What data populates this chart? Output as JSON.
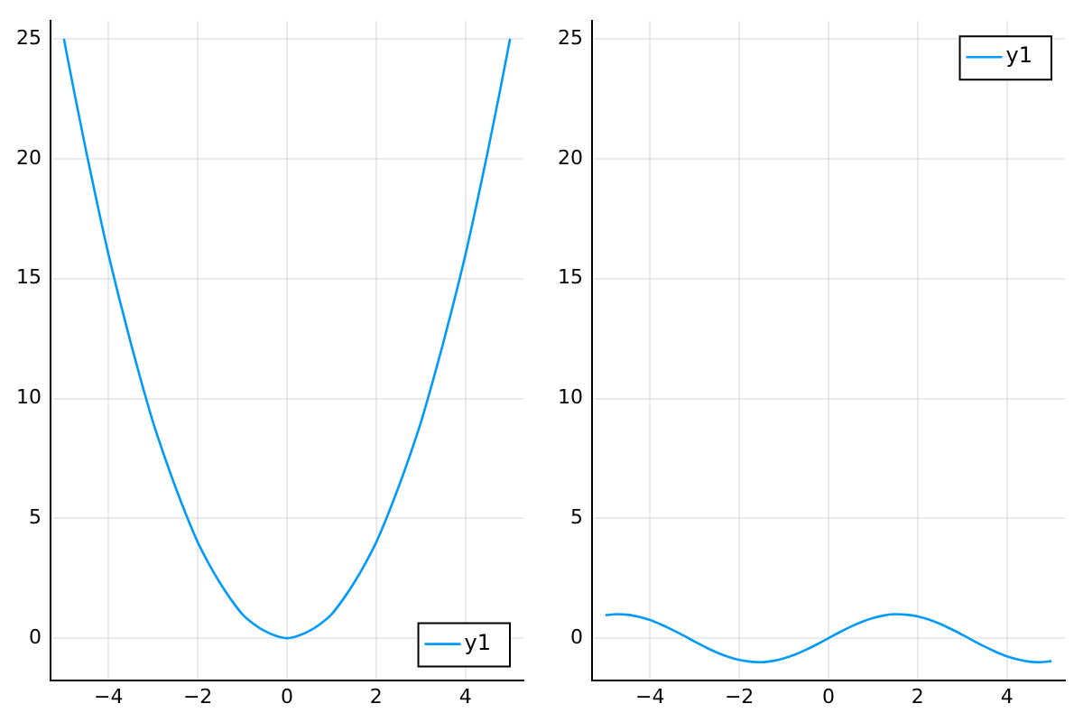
{
  "chart_data": [
    {
      "type": "line",
      "x": [
        -5,
        -4.75,
        -4.5,
        -4.25,
        -4,
        -3.75,
        -3.5,
        -3.25,
        -3,
        -2.75,
        -2.5,
        -2.25,
        -2,
        -1.75,
        -1.5,
        -1.25,
        -1,
        -0.75,
        -0.5,
        -0.25,
        0,
        0.25,
        0.5,
        0.75,
        1,
        1.25,
        1.5,
        1.75,
        2,
        2.25,
        2.5,
        2.75,
        3,
        3.25,
        3.5,
        3.75,
        4,
        4.25,
        4.5,
        4.75,
        5
      ],
      "series": [
        {
          "name": "y1",
          "color": "#009af9",
          "values": [
            25,
            22.6,
            20.3,
            18.1,
            16,
            14.1,
            12.3,
            10.6,
            9,
            7.6,
            6.3,
            5.1,
            4,
            3.1,
            2.3,
            1.6,
            1,
            0.6,
            0.3,
            0.1,
            0,
            0.1,
            0.3,
            0.6,
            1,
            1.6,
            2.3,
            3.1,
            4,
            5.1,
            6.3,
            7.6,
            9,
            10.6,
            12.3,
            14.1,
            16,
            18.1,
            20.3,
            22.6,
            25
          ]
        }
      ],
      "xlim": [
        -5.3,
        5.3
      ],
      "ylim": [
        -1.75,
        25.75
      ],
      "xticks": [
        -4,
        -2,
        0,
        2,
        4
      ],
      "yticks": [
        0,
        5,
        10,
        15,
        20,
        25
      ],
      "grid": true,
      "legend": "bottom right"
    },
    {
      "type": "line",
      "x": [
        -5,
        -4.75,
        -4.5,
        -4.25,
        -4,
        -3.75,
        -3.5,
        -3.25,
        -3,
        -2.75,
        -2.5,
        -2.25,
        -2,
        -1.75,
        -1.5,
        -1.25,
        -1,
        -0.75,
        -0.5,
        -0.25,
        0,
        0.25,
        0.5,
        0.75,
        1,
        1.25,
        1.5,
        1.75,
        2,
        2.25,
        2.5,
        2.75,
        3,
        3.25,
        3.5,
        3.75,
        4,
        4.25,
        4.5,
        4.75,
        5
      ],
      "series": [
        {
          "name": "y1",
          "color": "#009af9",
          "values": [
            0.96,
            1,
            0.98,
            0.89,
            0.76,
            0.57,
            0.35,
            0.11,
            -0.14,
            -0.38,
            -0.6,
            -0.78,
            -0.91,
            -0.98,
            -1,
            -0.95,
            -0.84,
            -0.68,
            -0.48,
            -0.25,
            0,
            0.25,
            0.48,
            0.68,
            0.84,
            0.95,
            1,
            0.98,
            0.91,
            0.78,
            0.6,
            0.38,
            0.14,
            -0.11,
            -0.35,
            -0.57,
            -0.76,
            -0.89,
            -0.98,
            -1,
            -0.96
          ]
        }
      ],
      "xlim": [
        -5.3,
        5.3
      ],
      "ylim": [
        -1.75,
        25.75
      ],
      "xticks": [
        -4,
        -2,
        0,
        2,
        4
      ],
      "yticks": [
        0,
        5,
        10,
        15,
        20,
        25
      ],
      "grid": true,
      "legend": "top right"
    }
  ]
}
